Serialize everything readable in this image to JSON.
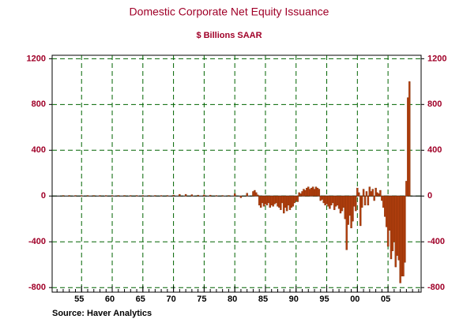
{
  "chart_data": {
    "type": "bar",
    "title": "Domestic Corporate Net Equity Issuance",
    "subtitle": "$ Billions SAAR",
    "source": "Source: Haver Analytics",
    "color": "#b5400f",
    "grid": true,
    "x": [
      1952,
      1953,
      1954,
      1955,
      1956,
      1957,
      1958,
      1959,
      1960,
      1961,
      1962,
      1963,
      1964,
      1965,
      1966,
      1967,
      1968,
      1969,
      1970,
      1971,
      1972,
      1973,
      1974,
      1975,
      1976,
      1977,
      1978,
      1979,
      1980,
      1981,
      1982,
      1983,
      1983.25,
      1983.5,
      1983.75,
      1984,
      1984.25,
      1984.5,
      1984.75,
      1985,
      1985.25,
      1985.5,
      1985.75,
      1986,
      1986.25,
      1986.5,
      1986.75,
      1987,
      1987.25,
      1987.5,
      1987.75,
      1988,
      1988.25,
      1988.5,
      1988.75,
      1989,
      1989.25,
      1989.5,
      1989.75,
      1990,
      1990.25,
      1990.5,
      1990.75,
      1991,
      1991.25,
      1991.5,
      1991.75,
      1992,
      1992.25,
      1992.5,
      1992.75,
      1993,
      1993.25,
      1993.5,
      1993.75,
      1994,
      1994.25,
      1994.5,
      1994.75,
      1995,
      1995.25,
      1995.5,
      1995.75,
      1996,
      1996.25,
      1996.5,
      1996.75,
      1997,
      1997.25,
      1997.5,
      1997.75,
      1998,
      1998.25,
      1998.5,
      1998.75,
      1999,
      1999.25,
      1999.5,
      1999.75,
      2000,
      2000.25,
      2000.5,
      2000.75,
      2001,
      2001.25,
      2001.5,
      2001.75,
      2002,
      2002.25,
      2002.5,
      2002.75,
      2003,
      2003.25,
      2003.5,
      2003.75,
      2004,
      2004.25,
      2004.5,
      2004.75,
      2005,
      2005.25,
      2005.5,
      2005.75,
      2006,
      2006.25,
      2006.5,
      2006.75,
      2007,
      2007.25,
      2007.5,
      2007.75,
      2008,
      2008.25,
      2008.5
    ],
    "values": [
      5,
      5,
      5,
      5,
      5,
      5,
      5,
      5,
      5,
      5,
      5,
      5,
      5,
      5,
      5,
      5,
      5,
      5,
      8,
      15,
      15,
      12,
      8,
      10,
      8,
      5,
      5,
      5,
      20,
      -15,
      25,
      40,
      50,
      30,
      10,
      -80,
      -100,
      -60,
      -90,
      -70,
      -80,
      -60,
      -100,
      -80,
      -90,
      -70,
      -60,
      -90,
      -100,
      -120,
      -60,
      -150,
      -100,
      -130,
      -80,
      -120,
      -100,
      -90,
      -60,
      -40,
      -50,
      30,
      20,
      40,
      60,
      50,
      70,
      80,
      60,
      70,
      80,
      60,
      80,
      70,
      60,
      -40,
      -30,
      -60,
      -80,
      -70,
      -90,
      -110,
      -80,
      -60,
      -120,
      -90,
      -80,
      -110,
      -150,
      -130,
      -100,
      -200,
      -470,
      -250,
      -170,
      -280,
      -220,
      -90,
      -130,
      70,
      30,
      -260,
      -100,
      60,
      -80,
      40,
      -80,
      80,
      40,
      60,
      -40,
      70,
      30,
      20,
      50,
      -40,
      -100,
      -180,
      -270,
      -440,
      -300,
      -550,
      -480,
      -400,
      -620,
      -520,
      -560,
      -760,
      -700,
      -700,
      -580,
      130,
      860,
      1000
    ],
    "xlim": [
      1950.2,
      2010.4
    ],
    "xticks": [
      {
        "value": 1955,
        "label": "55"
      },
      {
        "value": 1960,
        "label": "60"
      },
      {
        "value": 1965,
        "label": "65"
      },
      {
        "value": 1970,
        "label": "70"
      },
      {
        "value": 1975,
        "label": "75"
      },
      {
        "value": 1980,
        "label": "80"
      },
      {
        "value": 1985,
        "label": "85"
      },
      {
        "value": 1990,
        "label": "90"
      },
      {
        "value": 1995,
        "label": "95"
      },
      {
        "value": 2000,
        "label": "00"
      },
      {
        "value": 2005,
        "label": "05"
      }
    ],
    "ylim": [
      -840,
      1230
    ],
    "yticks": [
      -800,
      -400,
      0,
      400,
      800,
      1200
    ]
  }
}
